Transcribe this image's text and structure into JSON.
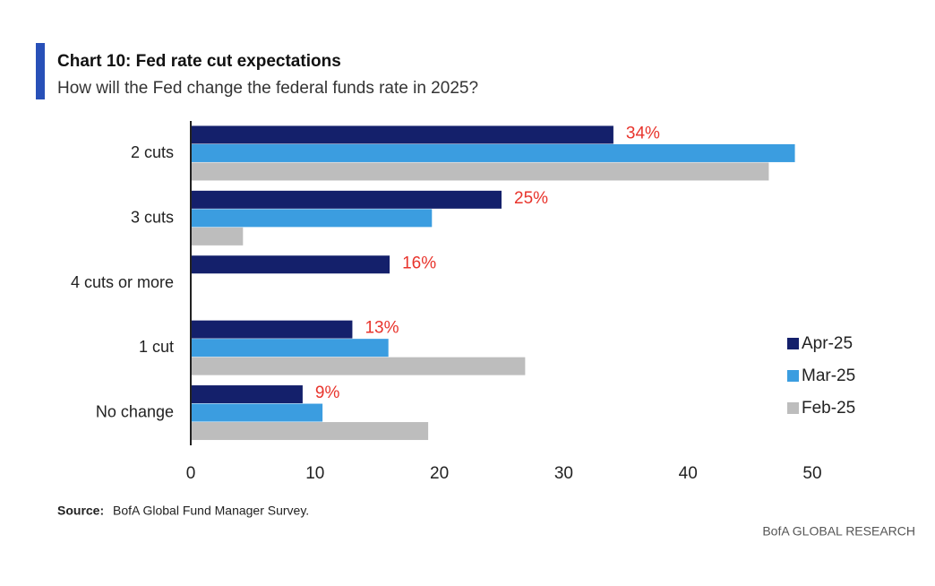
{
  "chart_data": {
    "type": "bar",
    "orientation": "horizontal",
    "title": "Chart 10: Fed rate cut expectations",
    "subtitle": "How will the Fed change the federal funds rate in 2025?",
    "categories": [
      "2 cuts",
      "3 cuts",
      "4 cuts or more",
      "1 cut",
      "No change"
    ],
    "series": [
      {
        "name": "Apr-25",
        "color": "#14206b",
        "values": [
          34,
          25,
          16,
          13,
          9
        ],
        "value_labels": [
          "34%",
          "25%",
          "16%",
          "13%",
          "9%"
        ]
      },
      {
        "name": "Mar-25",
        "color": "#3b9de0",
        "values": [
          48.6,
          19.4,
          null,
          15.9,
          10.6
        ]
      },
      {
        "name": "Feb-25",
        "color": "#bdbdbd",
        "values": [
          46.5,
          4.2,
          null,
          26.9,
          19.1
        ]
      }
    ],
    "xlim": [
      0,
      50
    ],
    "xticks": [
      0,
      10,
      20,
      30,
      40,
      50
    ],
    "legend": "right",
    "source_label": "Source:",
    "source": "BofA Global Fund Manager Survey.",
    "brand": "BofA GLOBAL RESEARCH"
  }
}
